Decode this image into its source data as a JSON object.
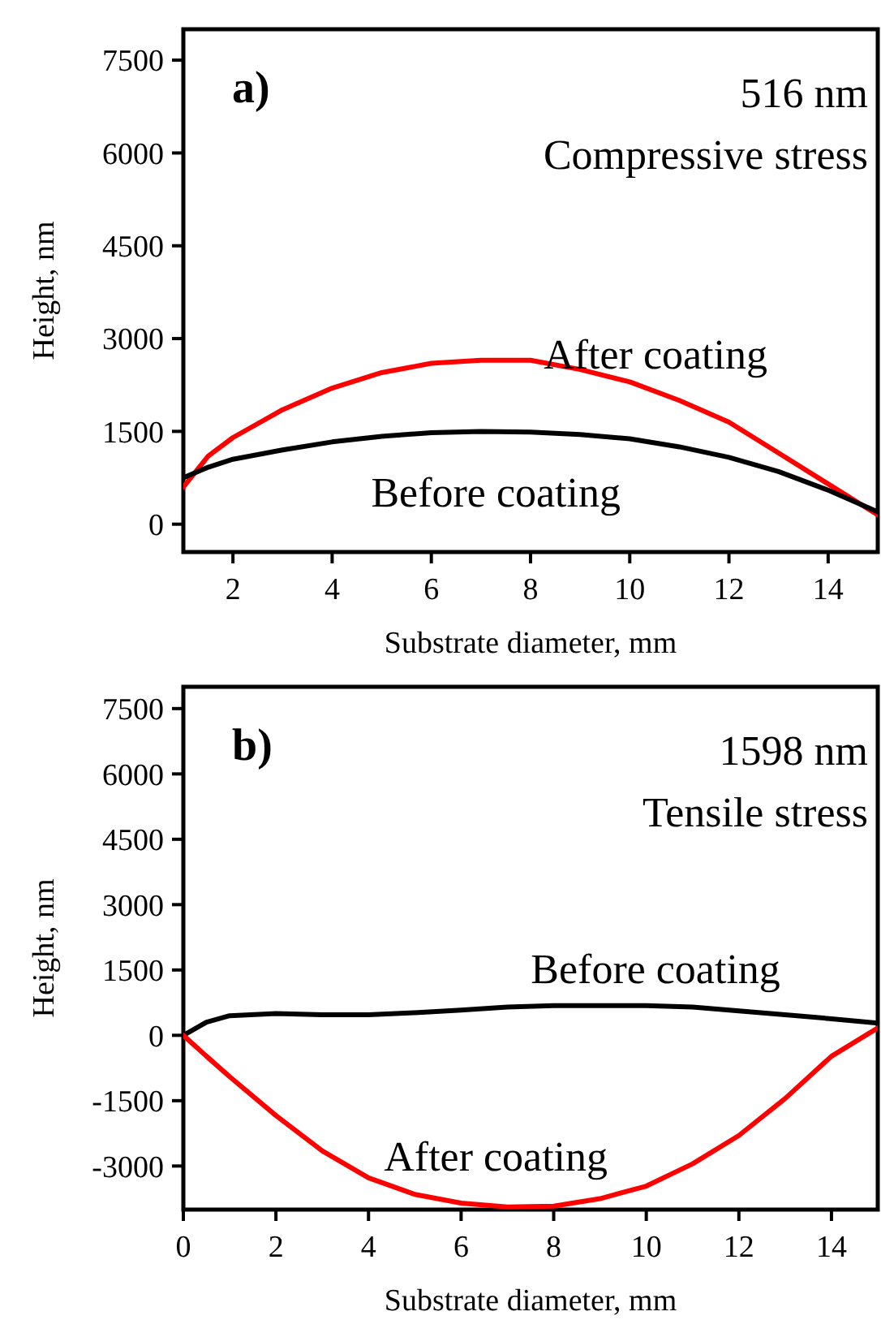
{
  "chart_data": [
    {
      "type": "line",
      "xlabel": "Substrate diameter, mm",
      "ylabel": "Height, nm",
      "annotations": [
        "a)",
        "516 nm",
        "Compressive stress"
      ],
      "xlim": [
        1,
        15
      ],
      "xticks": [
        2,
        4,
        6,
        8,
        10,
        12,
        14
      ],
      "ylim": [
        -450,
        8000
      ],
      "yticks": [
        0,
        1500,
        3000,
        4500,
        6000,
        7500
      ],
      "legend": false,
      "grid": false,
      "marker": "none",
      "line_style": "solid",
      "x": [
        1,
        1.5,
        2,
        3,
        4,
        5,
        6,
        7,
        8,
        9,
        10,
        11,
        12,
        13,
        14,
        15
      ],
      "series": [
        {
          "name": "After coating",
          "color": "#ff0000",
          "values": [
            600,
            1100,
            1400,
            1850,
            2200,
            2450,
            2600,
            2650,
            2650,
            2500,
            2300,
            2000,
            1650,
            1150,
            650,
            150
          ]
        },
        {
          "name": "Before coating",
          "color": "#000000",
          "values": [
            750,
            920,
            1050,
            1200,
            1330,
            1420,
            1480,
            1500,
            1490,
            1450,
            1380,
            1250,
            1080,
            850,
            550,
            200
          ]
        }
      ]
    },
    {
      "type": "line",
      "xlabel": "Substrate diameter, mm",
      "ylabel": "Height, nm",
      "annotations": [
        "b)",
        "1598 nm",
        "Tensile stress"
      ],
      "xlim": [
        0,
        15
      ],
      "xticks": [
        0,
        2,
        4,
        6,
        8,
        10,
        12,
        14
      ],
      "ylim": [
        -4000,
        8000
      ],
      "yticks": [
        -3000,
        -1500,
        0,
        1500,
        3000,
        4500,
        6000,
        7500
      ],
      "legend": false,
      "grid": false,
      "marker": "none",
      "line_style": "solid",
      "x": [
        0,
        0.5,
        1,
        2,
        3,
        4,
        5,
        6,
        7,
        8,
        9,
        10,
        11,
        12,
        13,
        14,
        15
      ],
      "series": [
        {
          "name": "Before coating",
          "color": "#000000",
          "values": [
            0,
            300,
            450,
            500,
            470,
            470,
            520,
            580,
            650,
            680,
            680,
            680,
            650,
            560,
            470,
            380,
            280
          ]
        },
        {
          "name": "After coating",
          "color": "#ff0000",
          "values": [
            0,
            -480,
            -950,
            -1840,
            -2650,
            -3270,
            -3650,
            -3850,
            -3940,
            -3920,
            -3750,
            -3460,
            -2950,
            -2300,
            -1450,
            -480,
            170
          ]
        }
      ]
    }
  ]
}
